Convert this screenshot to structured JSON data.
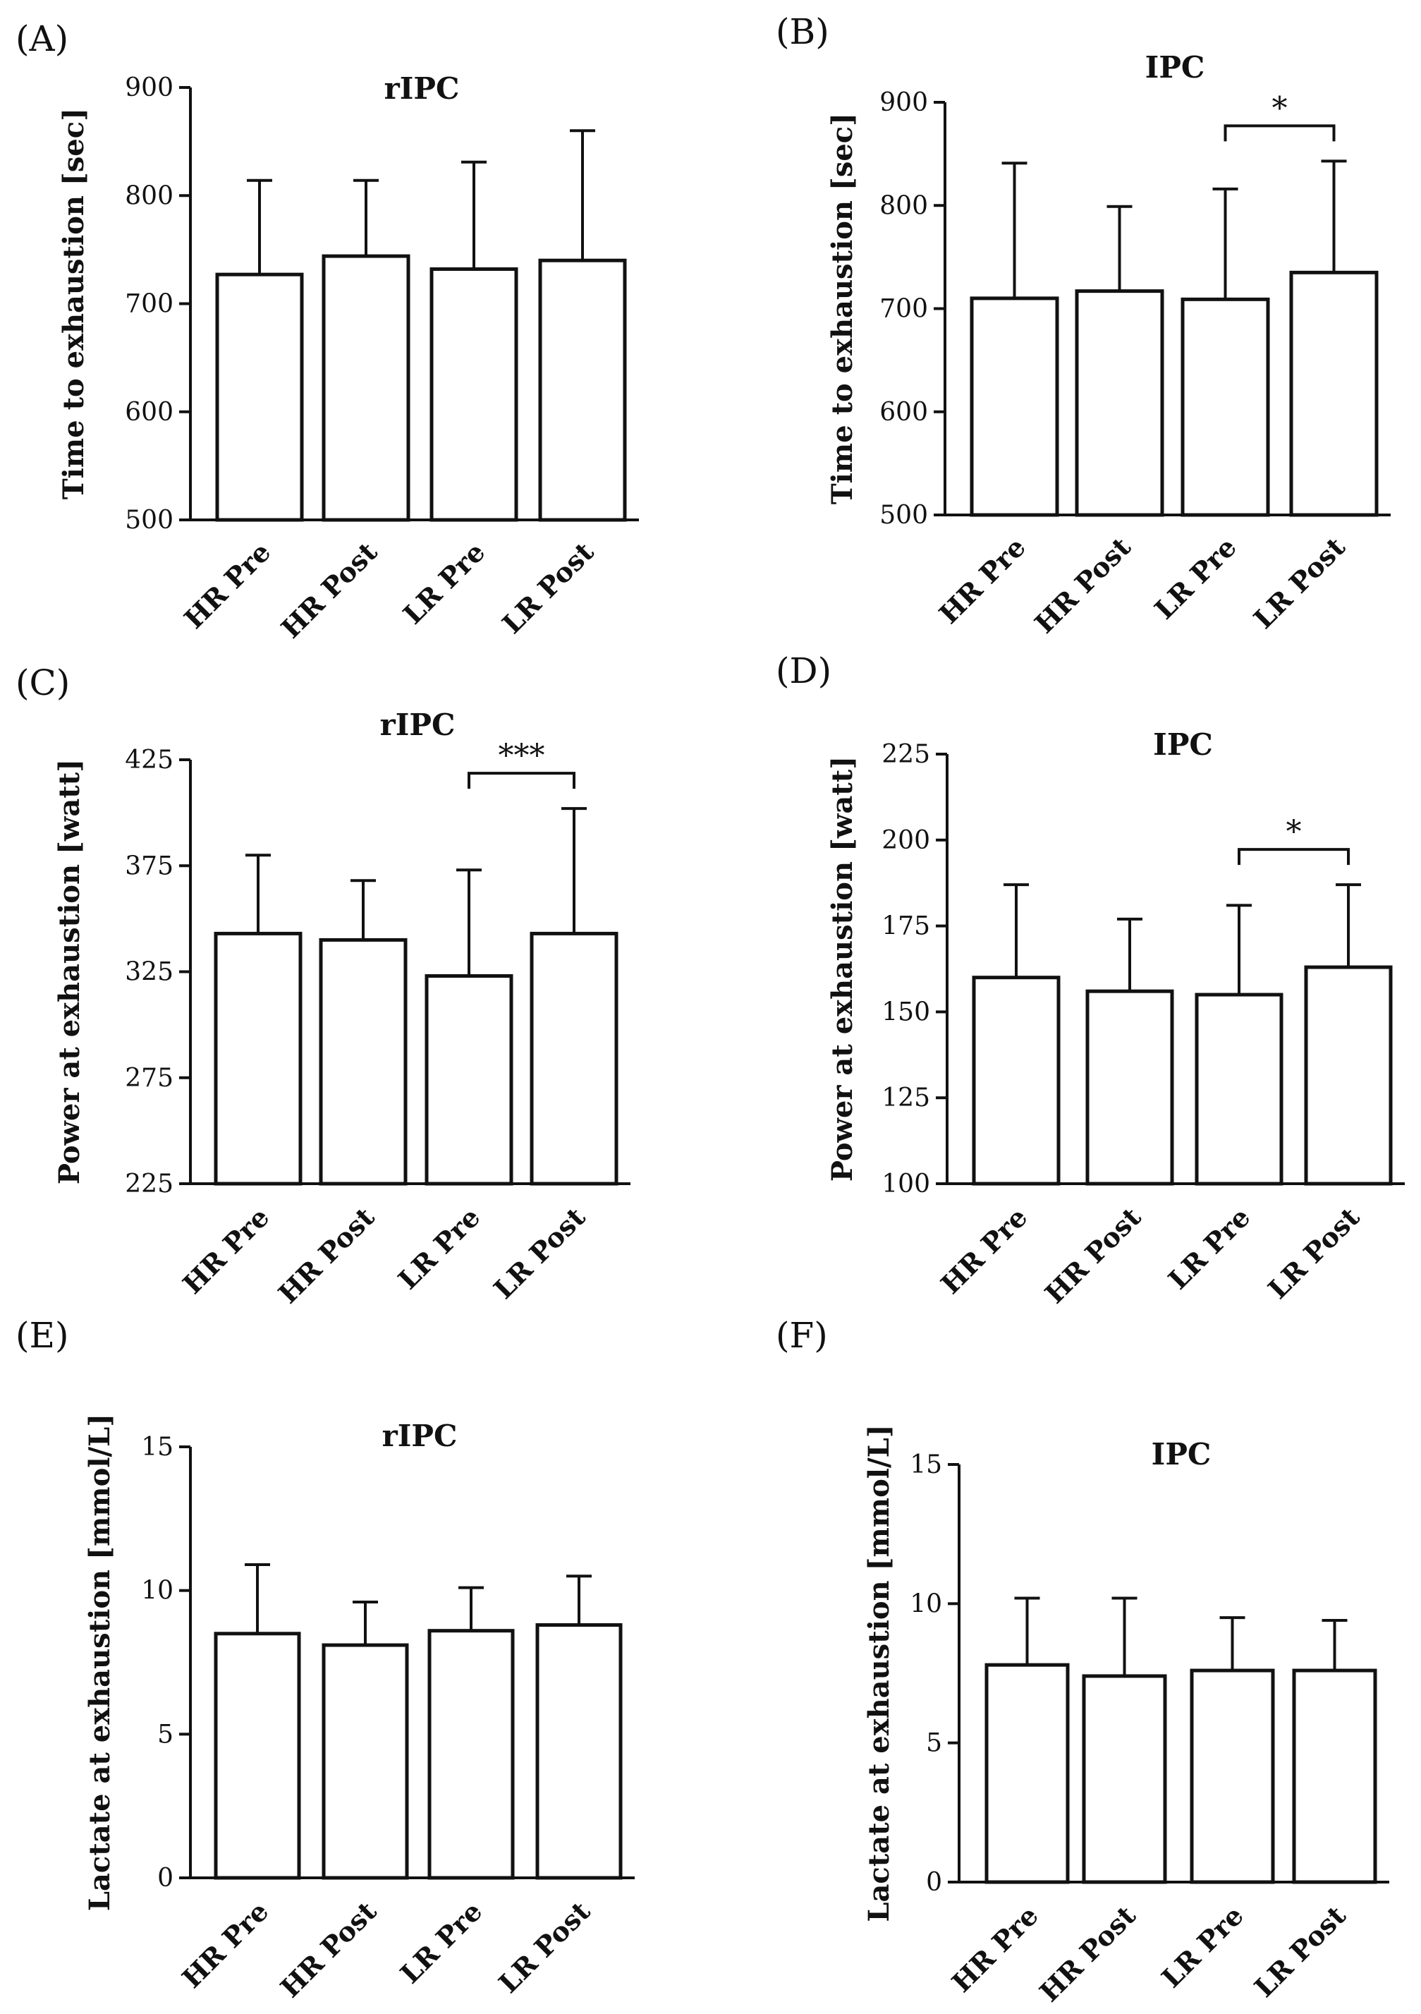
{
  "chart_data": [
    {
      "panel": "(A)",
      "type": "bar",
      "title": "rIPC",
      "xlabel": "",
      "ylabel": "Time to exhaustion [sec]",
      "ylim": [
        500,
        900
      ],
      "yticks": [
        500,
        600,
        700,
        800,
        900
      ],
      "categories": [
        "HR Pre",
        "HR Post",
        "LR Pre",
        "LR Post"
      ],
      "values": [
        727,
        744,
        732,
        740
      ],
      "errors": [
        87,
        70,
        99,
        120
      ],
      "significance": null
    },
    {
      "panel": "(B)",
      "type": "bar",
      "title": "IPC",
      "xlabel": "",
      "ylabel": "Time to exhaustion [sec]",
      "ylim": [
        500,
        900
      ],
      "yticks": [
        500,
        600,
        700,
        800,
        900
      ],
      "categories": [
        "HR Pre",
        "HR Post",
        "LR Pre",
        "LR Post"
      ],
      "values": [
        710,
        717,
        709,
        735
      ],
      "errors": [
        131,
        82,
        107,
        108
      ],
      "significance": {
        "from": 2,
        "to": 3,
        "label": "*"
      }
    },
    {
      "panel": "(C)",
      "type": "bar",
      "title": "rIPC",
      "xlabel": "",
      "ylabel": "Power at exhaustion [watt]",
      "ylim": [
        225,
        425
      ],
      "yticks": [
        225,
        275,
        325,
        375,
        425
      ],
      "categories": [
        "HR Pre",
        "HR Post",
        "LR Pre",
        "LR Post"
      ],
      "values": [
        343,
        340,
        323,
        343
      ],
      "errors": [
        37,
        28,
        50,
        59
      ],
      "significance": {
        "from": 2,
        "to": 3,
        "label": "***"
      }
    },
    {
      "panel": "(D)",
      "type": "bar",
      "title": "IPC",
      "xlabel": "",
      "ylabel": "Power at exhaustion [watt]",
      "ylim": [
        100,
        225
      ],
      "yticks": [
        100,
        125,
        150,
        175,
        200,
        225
      ],
      "categories": [
        "HR Pre",
        "HR Post",
        "LR Pre",
        "LR Post"
      ],
      "values": [
        160,
        156,
        155,
        163
      ],
      "errors": [
        27,
        21,
        26,
        24
      ],
      "significance": {
        "from": 2,
        "to": 3,
        "label": "*"
      }
    },
    {
      "panel": "(E)",
      "type": "bar",
      "title": "rIPC",
      "xlabel": "",
      "ylabel": "Lactate at exhaustion [mmol/L]",
      "ylim": [
        0,
        15
      ],
      "yticks": [
        0,
        5,
        10,
        15
      ],
      "categories": [
        "HR Pre",
        "HR Post",
        "LR Pre",
        "LR Post"
      ],
      "values": [
        8.5,
        8.1,
        8.6,
        8.8
      ],
      "errors": [
        2.4,
        1.5,
        1.5,
        1.7
      ],
      "significance": null
    },
    {
      "panel": "(F)",
      "type": "bar",
      "title": "IPC",
      "xlabel": "",
      "ylabel": "Lactate at exhaustion [mmol/L]",
      "ylim": [
        0,
        15
      ],
      "yticks": [
        0,
        5,
        10,
        15
      ],
      "categories": [
        "HR Pre",
        "HR Post",
        "LR Pre",
        "LR Post"
      ],
      "values": [
        7.8,
        7.4,
        7.6,
        7.6
      ],
      "errors": [
        2.4,
        2.8,
        1.9,
        1.8
      ],
      "significance": null
    }
  ]
}
